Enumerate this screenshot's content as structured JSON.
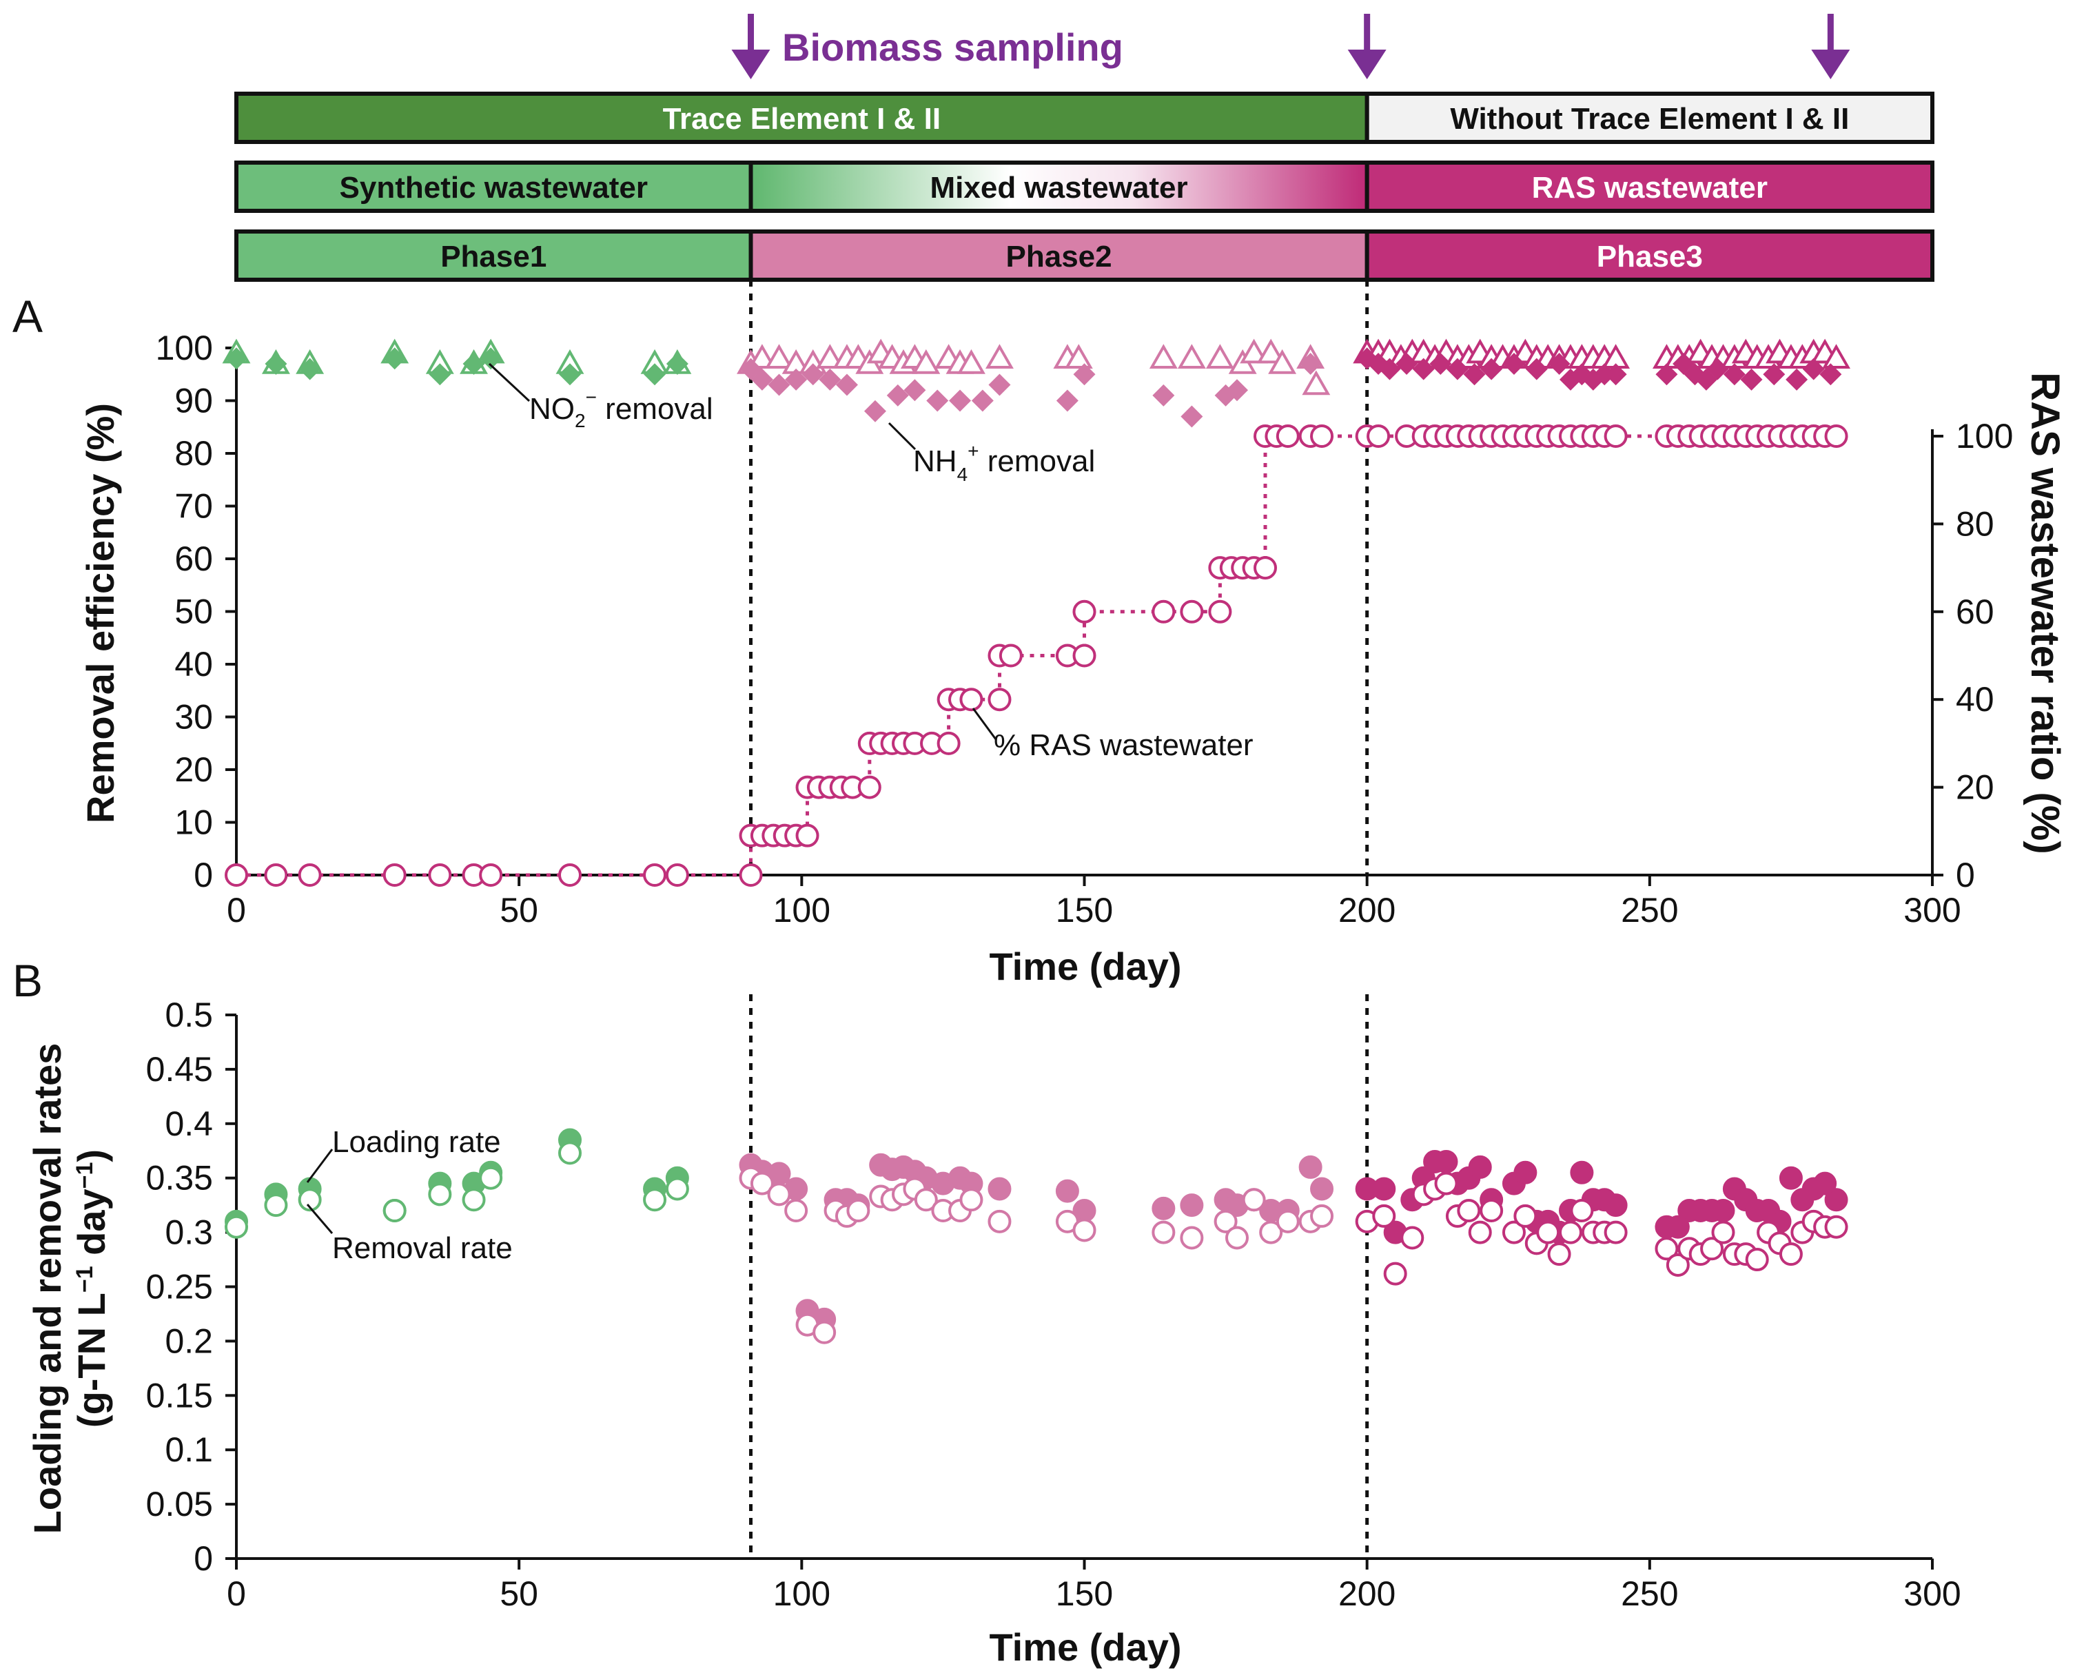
{
  "biomass_sampling": {
    "label": "Biomass sampling",
    "days": [
      91,
      200,
      282
    ],
    "color": "#7a2f93"
  },
  "bars": {
    "trace": [
      {
        "label": "Trace Element I & II",
        "from": 0,
        "to": 200,
        "fill": "#4e8f3d",
        "text_color": "#ffffff"
      },
      {
        "label": "Without Trace Element I & II",
        "from": 200,
        "to": 300,
        "fill": "#f2f2f2",
        "text_color": "#111111"
      }
    ],
    "wastewater": [
      {
        "label": "Synthetic wastewater",
        "from": 0,
        "to": 91,
        "fill": "#6dbe7b",
        "text_color": "#111111"
      },
      {
        "label": "Mixed wastewater",
        "from": 91,
        "to": 200,
        "fill": "gradient",
        "text_color": "#111111"
      },
      {
        "label": "RAS wastewater",
        "from": 200,
        "to": 300,
        "fill": "#c0307a",
        "text_color": "#ffffff"
      }
    ],
    "phase": [
      {
        "label": "Phase1",
        "from": 0,
        "to": 91,
        "fill": "#6dbe7b",
        "text_color": "#111111"
      },
      {
        "label": "Phase2",
        "from": 91,
        "to": 200,
        "fill": "#d77fa8",
        "text_color": "#111111"
      },
      {
        "label": "Phase3",
        "from": 200,
        "to": 300,
        "fill": "#c0307a",
        "text_color": "#ffffff"
      }
    ]
  },
  "colors": {
    "green": "#62b873",
    "pink": "#d278a6",
    "magenta": "#c0307a",
    "axis": "#111111"
  },
  "chart_data": [
    {
      "panel": "A",
      "type": "scatter",
      "xlabel": "Time (day)",
      "ylabel": "Removal efficiency (%)",
      "y2label": "RAS wastewater ratio (%)",
      "xlim": [
        0,
        300
      ],
      "ylim": [
        0,
        100
      ],
      "y2lim": [
        0,
        100
      ],
      "xticks": [
        0,
        50,
        100,
        150,
        200,
        250,
        300
      ],
      "yticks": [
        0,
        10,
        20,
        30,
        40,
        50,
        60,
        70,
        80,
        90,
        100
      ],
      "y2ticks": [
        0,
        20,
        40,
        60,
        80,
        100
      ],
      "phase_boundaries": [
        91,
        200
      ],
      "annotations": {
        "no2": {
          "text": "NO",
          "sub": "2",
          "sup": "−",
          "rest": " removal"
        },
        "nh4": {
          "text": "NH",
          "sub": "4",
          "sup": "+",
          "rest": " removal"
        },
        "ras": {
          "text": "% RAS wastewater"
        }
      },
      "series": [
        {
          "name": "NO2- removal",
          "marker": "open-triangle",
          "x": [
            0,
            7,
            13,
            28,
            36,
            42,
            45,
            59,
            74,
            78,
            91,
            93,
            96,
            99,
            102,
            105,
            108,
            110,
            112,
            114,
            116,
            118,
            120,
            122,
            126,
            128,
            130,
            135,
            147,
            149,
            164,
            169,
            174,
            178,
            180,
            183,
            185,
            190,
            191,
            200,
            202,
            204,
            206,
            208,
            210,
            212,
            214,
            216,
            218,
            220,
            222,
            224,
            226,
            228,
            230,
            232,
            234,
            236,
            238,
            240,
            242,
            244,
            253,
            255,
            257,
            259,
            261,
            263,
            265,
            267,
            269,
            271,
            273,
            275,
            277,
            279,
            281,
            283
          ],
          "y": [
            99,
            97,
            97,
            99,
            97,
            97,
            99,
            97,
            97,
            97,
            97,
            98,
            98,
            97,
            97,
            98,
            98,
            98,
            97,
            99,
            98,
            97,
            98,
            97,
            98,
            97,
            97,
            98,
            98,
            98,
            98,
            98,
            98,
            97,
            99,
            99,
            97,
            98,
            93,
            99,
            99,
            99,
            98,
            99,
            99,
            98,
            99,
            98,
            98,
            99,
            98,
            98,
            98,
            99,
            98,
            98,
            98,
            98,
            98,
            98,
            98,
            98,
            98,
            98,
            98,
            99,
            98,
            98,
            98,
            99,
            98,
            98,
            99,
            98,
            98,
            99,
            99,
            98
          ]
        },
        {
          "name": "NH4+ removal",
          "marker": "filled-diamond",
          "x": [
            0,
            7,
            13,
            28,
            36,
            42,
            45,
            59,
            74,
            78,
            91,
            93,
            96,
            99,
            102,
            105,
            108,
            113,
            117,
            120,
            124,
            128,
            132,
            135,
            147,
            150,
            164,
            169,
            175,
            177,
            190,
            200,
            202,
            204,
            207,
            210,
            213,
            216,
            219,
            222,
            226,
            230,
            234,
            236,
            238,
            240,
            242,
            244,
            253,
            256,
            258,
            260,
            262,
            265,
            268,
            272,
            276,
            279,
            282
          ],
          "y": [
            98,
            97,
            96,
            98,
            95,
            97,
            98,
            95,
            95,
            97,
            96,
            94,
            93,
            94,
            95,
            94,
            93,
            88,
            91,
            92,
            90,
            90,
            90,
            93,
            90,
            95,
            91,
            87,
            91,
            92,
            97,
            98,
            97,
            96,
            97,
            96,
            97,
            96,
            95,
            96,
            97,
            96,
            97,
            94,
            95,
            94,
            95,
            95,
            95,
            97,
            95,
            94,
            96,
            95,
            94,
            95,
            94,
            96,
            95
          ]
        },
        {
          "name": "% RAS wastewater",
          "marker": "open-circle",
          "axis": "y2",
          "step_line": "dotted",
          "x": [
            0,
            7,
            13,
            28,
            36,
            42,
            45,
            59,
            74,
            78,
            91,
            91,
            93,
            95,
            97,
            99,
            101,
            101,
            103,
            105,
            107,
            109,
            112,
            112,
            114,
            116,
            118,
            120,
            123,
            126,
            126,
            128,
            130,
            135,
            135,
            137,
            147,
            150,
            150,
            164,
            169,
            174,
            174,
            176,
            178,
            180,
            182,
            182,
            184,
            186,
            190,
            192,
            200,
            202,
            207,
            210,
            212,
            214,
            216,
            218,
            220,
            222,
            224,
            226,
            228,
            230,
            232,
            234,
            236,
            238,
            240,
            242,
            244,
            253,
            255,
            257,
            259,
            261,
            263,
            265,
            267,
            269,
            271,
            273,
            275,
            277,
            279,
            281,
            283
          ],
          "y": [
            0,
            0,
            0,
            0,
            0,
            0,
            0,
            0,
            0,
            0,
            0,
            9,
            9,
            9,
            9,
            9,
            9,
            20,
            20,
            20,
            20,
            20,
            20,
            30,
            30,
            30,
            30,
            30,
            30,
            30,
            40,
            40,
            40,
            40,
            50,
            50,
            50,
            50,
            60,
            60,
            60,
            60,
            70,
            70,
            70,
            70,
            70,
            100,
            100,
            100,
            100,
            100,
            100,
            100,
            100,
            100,
            100,
            100,
            100,
            100,
            100,
            100,
            100,
            100,
            100,
            100,
            100,
            100,
            100,
            100,
            100,
            100,
            100,
            100,
            100,
            100,
            100,
            100,
            100,
            100,
            100,
            100,
            100,
            100,
            100,
            100,
            100,
            100,
            100
          ]
        }
      ]
    },
    {
      "panel": "B",
      "type": "scatter",
      "xlabel": "Time (day)",
      "ylabel": "Loading and removal rates",
      "ylabel2": "(g-TN L",
      "ylabel2_sup1": "−1",
      "ylabel2_mid": " day",
      "ylabel2_sup2": "−1",
      "ylabel2_end": ")",
      "xlim": [
        0,
        300
      ],
      "ylim": [
        0,
        0.5
      ],
      "xticks": [
        0,
        50,
        100,
        150,
        200,
        250,
        300
      ],
      "yticks": [
        "0",
        "0.05",
        "0.1",
        "0.15",
        "0.2",
        "0.25",
        "0.3",
        "0.35",
        "0.4",
        "0.45",
        "0.5"
      ],
      "phase_boundaries": [
        91,
        200
      ],
      "annotations": {
        "loading": "Loading rate",
        "removal": "Removal rate"
      },
      "series": [
        {
          "name": "Loading rate",
          "marker": "filled-circle",
          "x": [
            0,
            7,
            13,
            28,
            36,
            42,
            45,
            59,
            74,
            78,
            91,
            93,
            96,
            99,
            101,
            104,
            106,
            108,
            110,
            114,
            116,
            118,
            120,
            122,
            125,
            128,
            130,
            135,
            147,
            150,
            164,
            169,
            175,
            177,
            180,
            183,
            186,
            190,
            192,
            200,
            203,
            205,
            208,
            210,
            212,
            214,
            216,
            218,
            220,
            222,
            226,
            228,
            230,
            232,
            234,
            236,
            238,
            240,
            242,
            244,
            253,
            255,
            257,
            259,
            261,
            263,
            265,
            267,
            269,
            271,
            273,
            275,
            277,
            279,
            281,
            283
          ],
          "y": [
            0.31,
            0.335,
            0.34,
            0.32,
            0.345,
            0.345,
            0.355,
            0.385,
            0.34,
            0.35,
            0.362,
            0.356,
            0.354,
            0.34,
            0.228,
            0.22,
            0.33,
            0.33,
            0.325,
            0.362,
            0.358,
            0.36,
            0.356,
            0.35,
            0.345,
            0.35,
            0.345,
            0.34,
            0.338,
            0.32,
            0.322,
            0.325,
            0.33,
            0.325,
            0.33,
            0.32,
            0.32,
            0.36,
            0.34,
            0.34,
            0.34,
            0.3,
            0.33,
            0.35,
            0.365,
            0.365,
            0.345,
            0.35,
            0.36,
            0.33,
            0.345,
            0.355,
            0.31,
            0.31,
            0.3,
            0.32,
            0.355,
            0.33,
            0.33,
            0.325,
            0.305,
            0.305,
            0.32,
            0.32,
            0.32,
            0.32,
            0.34,
            0.33,
            0.32,
            0.32,
            0.31,
            0.35,
            0.33,
            0.34,
            0.345,
            0.33
          ]
        },
        {
          "name": "Removal rate",
          "marker": "open-circle",
          "x": [
            0,
            7,
            13,
            28,
            36,
            42,
            45,
            59,
            74,
            78,
            91,
            93,
            96,
            99,
            101,
            104,
            106,
            108,
            110,
            114,
            116,
            118,
            120,
            122,
            125,
            128,
            130,
            135,
            147,
            150,
            164,
            169,
            175,
            177,
            180,
            183,
            186,
            190,
            192,
            200,
            203,
            205,
            208,
            210,
            212,
            214,
            216,
            218,
            220,
            222,
            226,
            228,
            230,
            232,
            234,
            236,
            238,
            240,
            242,
            244,
            253,
            255,
            257,
            259,
            261,
            263,
            265,
            267,
            269,
            271,
            273,
            275,
            277,
            279,
            281,
            283
          ],
          "y": [
            0.305,
            0.325,
            0.33,
            0.32,
            0.335,
            0.33,
            0.35,
            0.373,
            0.33,
            0.34,
            0.35,
            0.345,
            0.335,
            0.32,
            0.215,
            0.208,
            0.32,
            0.315,
            0.32,
            0.333,
            0.33,
            0.335,
            0.34,
            0.33,
            0.32,
            0.32,
            0.33,
            0.31,
            0.31,
            0.302,
            0.3,
            0.295,
            0.31,
            0.295,
            0.33,
            0.3,
            0.31,
            0.31,
            0.315,
            0.31,
            0.315,
            0.262,
            0.295,
            0.335,
            0.34,
            0.345,
            0.315,
            0.32,
            0.3,
            0.32,
            0.3,
            0.315,
            0.29,
            0.3,
            0.28,
            0.3,
            0.32,
            0.3,
            0.3,
            0.3,
            0.285,
            0.27,
            0.285,
            0.28,
            0.285,
            0.3,
            0.28,
            0.28,
            0.275,
            0.3,
            0.29,
            0.28,
            0.3,
            0.31,
            0.305,
            0.305
          ]
        }
      ]
    }
  ],
  "panel_labels": {
    "a": "A",
    "b": "B"
  }
}
